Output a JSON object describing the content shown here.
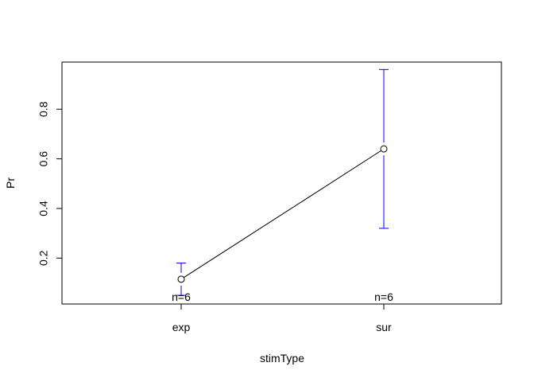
{
  "chart_data": {
    "type": "line",
    "title": "",
    "xlabel": "stimType",
    "ylabel": "Pr",
    "categories": [
      "exp",
      "sur"
    ],
    "series": [
      {
        "values": [
          0.115,
          0.64
        ],
        "lower": [
          0.05,
          0.32
        ],
        "upper": [
          0.18,
          0.96
        ],
        "n_labels": [
          "n=6",
          "n=6"
        ]
      }
    ],
    "yticks": [
      0.2,
      0.4,
      0.6,
      0.8
    ],
    "ytick_labels": [
      "0.2",
      "0.4",
      "0.6",
      "0.8"
    ],
    "ylim": [
      0.015,
      0.99
    ],
    "colors": {
      "line": "#000000",
      "errorbar": "#0000ff",
      "point": "#000000"
    },
    "grid": false,
    "legend": "none"
  }
}
